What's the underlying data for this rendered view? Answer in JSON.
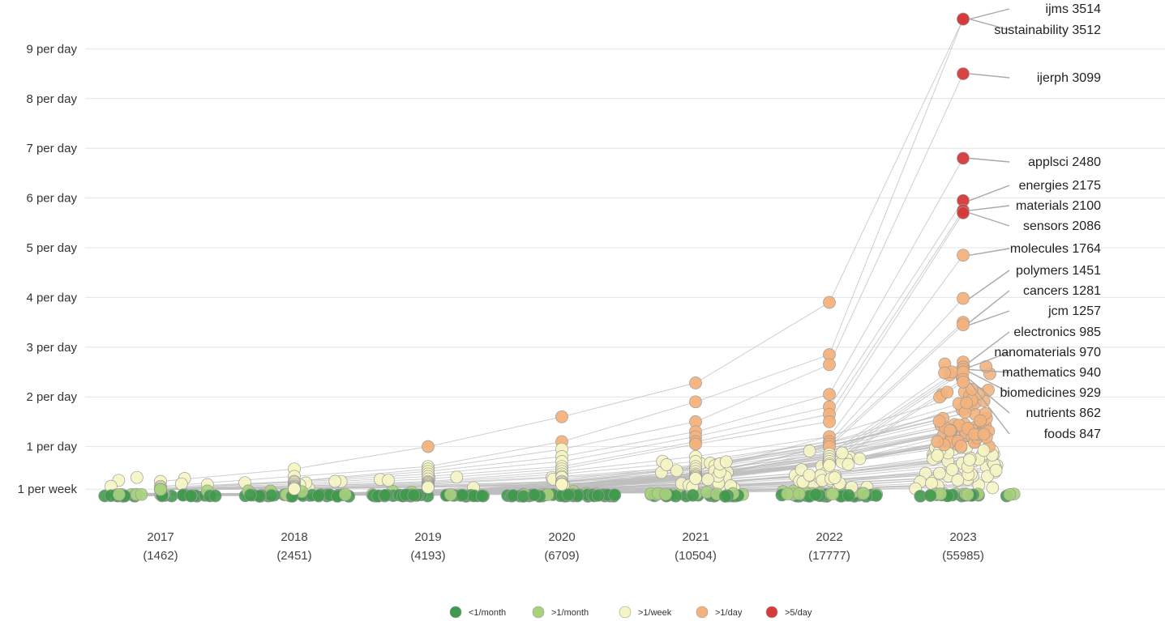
{
  "chart_data": {
    "type": "scatter",
    "title": "",
    "xlabel": "",
    "ylabel": "",
    "colors": {
      "lt_1_month": "#3f9a4d",
      "gt_1_month": "#a9d27c",
      "gt_1_week": "#f6f5c4",
      "gt_1_day": "#f4b27c",
      "gt_5_day": "#d63a3a",
      "connector": "#bdbdbd"
    },
    "y_axis": {
      "unit": "papers per day",
      "ticks": [
        {
          "value": 0.142857,
          "label": "1 per week"
        },
        {
          "value": 1,
          "label": "1 per day"
        },
        {
          "value": 2,
          "label": "2 per day"
        },
        {
          "value": 3,
          "label": "3 per day"
        },
        {
          "value": 4,
          "label": "4 per day"
        },
        {
          "value": 5,
          "label": "5 per day"
        },
        {
          "value": 6,
          "label": "6 per day"
        },
        {
          "value": 7,
          "label": "7 per day"
        },
        {
          "value": 8,
          "label": "8 per day"
        },
        {
          "value": 9,
          "label": "9 per day"
        }
      ],
      "range": [
        0,
        10
      ],
      "grid": true
    },
    "years": [
      {
        "year": "2017",
        "count": "(1462)"
      },
      {
        "year": "2018",
        "count": "(2451)"
      },
      {
        "year": "2019",
        "count": "(4193)"
      },
      {
        "year": "2020",
        "count": "(6709)"
      },
      {
        "year": "2021",
        "count": "(10504)"
      },
      {
        "year": "2022",
        "count": "(17777)"
      },
      {
        "year": "2023",
        "count": "(55985)"
      }
    ],
    "labeled_journals": [
      {
        "name": "ijms",
        "total": 3514,
        "rates": [
          0.3,
          0.55,
          1.0,
          1.6,
          2.28,
          3.9,
          9.6
        ]
      },
      {
        "name": "sustainability",
        "total": 3512,
        "rates": [
          0.2,
          0.4,
          0.6,
          1.1,
          1.9,
          2.85,
          9.6
        ]
      },
      {
        "name": "ijerph",
        "total": 3099,
        "rates": [
          0.18,
          0.3,
          0.55,
          0.95,
          1.5,
          2.65,
          8.5
        ]
      },
      {
        "name": "applsci",
        "total": 2480,
        "rates": [
          0.15,
          0.3,
          0.5,
          0.8,
          1.3,
          2.05,
          6.8
        ]
      },
      {
        "name": "energies",
        "total": 2175,
        "rates": [
          0.15,
          0.28,
          0.45,
          0.7,
          1.2,
          1.8,
          5.95
        ]
      },
      {
        "name": "materials",
        "total": 2100,
        "rates": [
          0.14,
          0.25,
          0.4,
          0.6,
          1.1,
          1.65,
          5.75
        ]
      },
      {
        "name": "sensors",
        "total": 2086,
        "rates": [
          0.14,
          0.22,
          0.35,
          0.55,
          1.05,
          1.5,
          5.7
        ]
      },
      {
        "name": "molecules",
        "total": 1764,
        "rates": [
          0.14,
          0.2,
          0.3,
          0.5,
          0.8,
          1.2,
          4.85
        ]
      },
      {
        "name": "polymers",
        "total": 1451,
        "rates": [
          0.14,
          0.2,
          0.28,
          0.45,
          0.7,
          1.1,
          3.98
        ]
      },
      {
        "name": "cancers",
        "total": 1281,
        "rates": [
          0.14,
          0.18,
          0.26,
          0.4,
          0.6,
          1.05,
          3.5
        ]
      },
      {
        "name": "jcm",
        "total": 1257,
        "rates": [
          0.14,
          0.18,
          0.24,
          0.38,
          0.55,
          1.0,
          3.45
        ]
      },
      {
        "name": "electronics",
        "total": 985,
        "rates": [
          0.14,
          0.16,
          0.22,
          0.3,
          0.5,
          0.85,
          2.7
        ]
      },
      {
        "name": "nanomaterials",
        "total": 970,
        "rates": [
          0.14,
          0.16,
          0.22,
          0.3,
          0.45,
          0.8,
          2.6
        ]
      },
      {
        "name": "mathematics",
        "total": 940,
        "rates": [
          0.14,
          0.15,
          0.2,
          0.28,
          0.42,
          0.75,
          2.55
        ]
      },
      {
        "name": "biomedicines",
        "total": 929,
        "rates": [
          0.14,
          0.15,
          0.2,
          0.25,
          0.4,
          0.7,
          2.5
        ]
      },
      {
        "name": "nutrients",
        "total": 862,
        "rates": [
          0.14,
          0.15,
          0.18,
          0.25,
          0.38,
          0.65,
          2.35
        ]
      },
      {
        "name": "foods",
        "total": 847,
        "rates": [
          0.14,
          0.15,
          0.18,
          0.24,
          0.36,
          0.62,
          2.3
        ]
      }
    ],
    "annotation_positions": [
      {
        "name": "ijms",
        "text": "ijms 3514"
      },
      {
        "name": "sustainability",
        "text": "sustainability 3512"
      },
      {
        "name": "ijerph",
        "text": "ijerph 3099"
      },
      {
        "name": "applsci",
        "text": "applsci 2480"
      },
      {
        "name": "energies",
        "text": "energies 2175"
      },
      {
        "name": "materials",
        "text": "materials 2100"
      },
      {
        "name": "sensors",
        "text": "sensors 2086"
      },
      {
        "name": "molecules",
        "text": "molecules 1764"
      },
      {
        "name": "polymers",
        "text": "polymers 1451"
      },
      {
        "name": "cancers",
        "text": "cancers 1281"
      },
      {
        "name": "jcm",
        "text": "jcm 1257"
      },
      {
        "name": "electronics",
        "text": "electronics 985"
      },
      {
        "name": "nanomaterials",
        "text": "nanomaterials 970"
      },
      {
        "name": "mathematics",
        "text": "mathematics 940"
      },
      {
        "name": "biomedicines",
        "text": "biomedicines 929"
      },
      {
        "name": "nutrients",
        "text": "nutrients 862"
      },
      {
        "name": "foods",
        "text": "foods 847"
      }
    ],
    "legend": {
      "placement": "bottom-center",
      "entries": [
        {
          "label": "<1/month",
          "color": "#3f9a4d"
        },
        {
          "label": ">1/month",
          "color": "#a9d27c"
        },
        {
          "label": ">1/week",
          "color": "#f6f5c4"
        },
        {
          "label": ">1/day",
          "color": "#f4b27c"
        },
        {
          "label": ">5/day",
          "color": "#d63a3a"
        }
      ]
    }
  }
}
